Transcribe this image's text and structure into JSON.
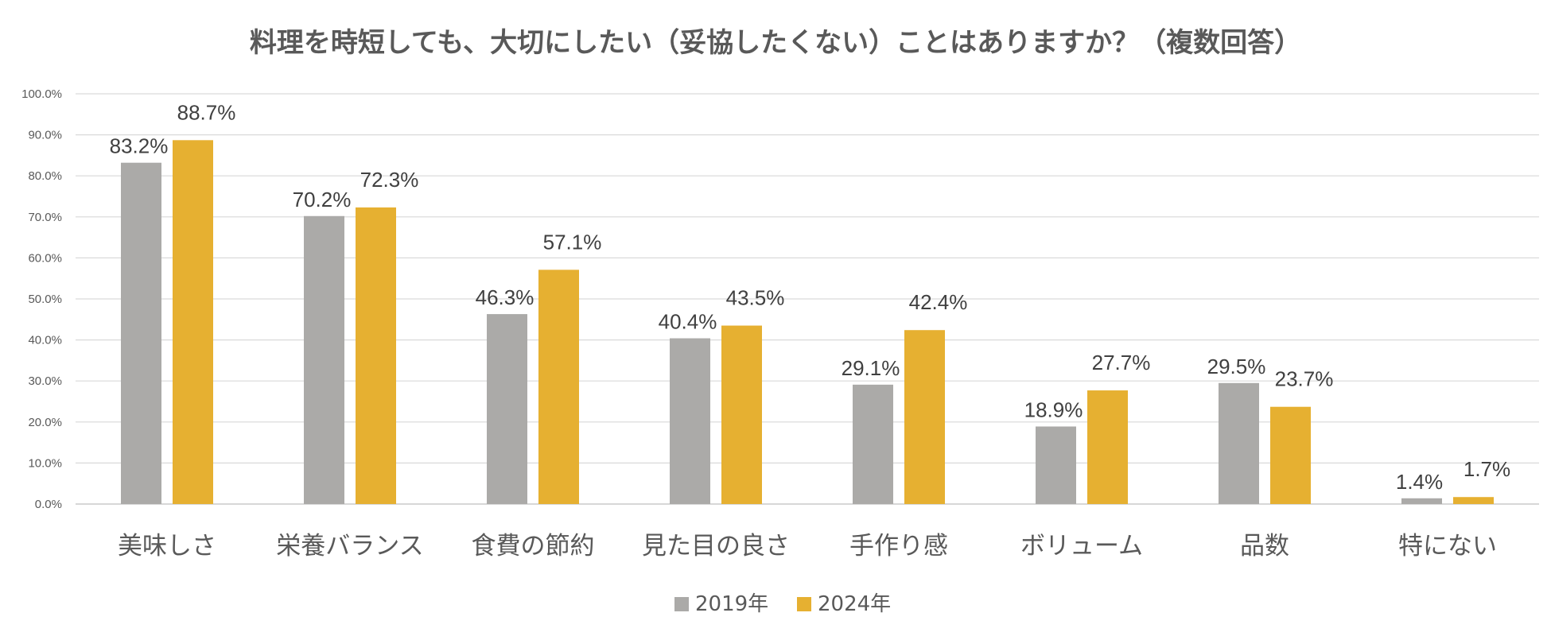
{
  "chart_data": {
    "type": "bar",
    "title": "料理を時短しても、大切にしたい（妥協したくない）ことはありますか？（複数回答）",
    "xlabel": "",
    "ylabel": "",
    "ylim": [
      0,
      100
    ],
    "y_ticks": [
      "0.0%",
      "10.0%",
      "20.0%",
      "30.0%",
      "40.0%",
      "50.0%",
      "60.0%",
      "70.0%",
      "80.0%",
      "90.0%",
      "100.0%"
    ],
    "categories": [
      "美味しさ",
      "栄養バランス",
      "食費の節約",
      "見た目の良さ",
      "手作り感",
      "ボリューム",
      "品数",
      "特にない"
    ],
    "series": [
      {
        "name": "2019年",
        "color": "#ABAAA8",
        "values": [
          83.2,
          70.2,
          46.3,
          40.4,
          29.1,
          18.9,
          29.5,
          1.4
        ],
        "labels": [
          "83.2%",
          "70.2%",
          "46.3%",
          "40.4%",
          "29.1%",
          "18.9%",
          "29.5%",
          "1.4%"
        ]
      },
      {
        "name": "2024年",
        "color": "#E6B031",
        "values": [
          88.7,
          72.3,
          57.1,
          43.5,
          42.4,
          27.7,
          23.7,
          1.7
        ],
        "labels": [
          "88.7%",
          "72.3%",
          "57.1%",
          "43.5%",
          "42.4%",
          "27.7%",
          "23.7%",
          "1.7%"
        ]
      }
    ],
    "grid": true,
    "legend": "bottom-center"
  }
}
